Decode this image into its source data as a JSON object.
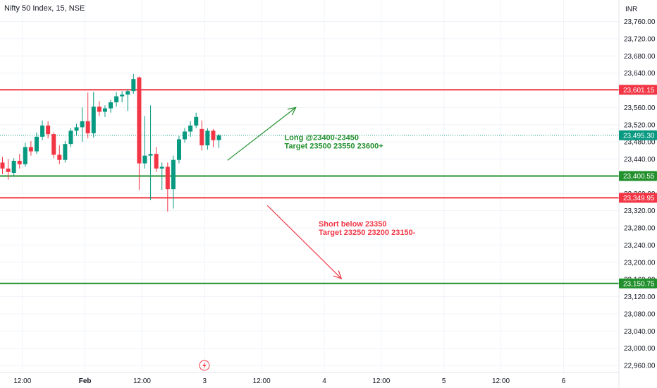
{
  "header": {
    "title": "Nifty 50 Index, 15, NSE",
    "currency": "INR"
  },
  "colors": {
    "up": "#089981",
    "down": "#f23645",
    "grid": "#f0f3fa",
    "axis_text": "#131722",
    "resistance": "#f23645",
    "support": "#22902d",
    "long_annotation": "#22902d",
    "short_annotation": "#f23645",
    "price_line": "#089981"
  },
  "chart_data": {
    "type": "candlestick",
    "y_range": [
      22940,
      23780
    ],
    "y_ticks": [
      {
        "value": 23760,
        "label": "23,760.00"
      },
      {
        "value": 23720,
        "label": "23,720.00"
      },
      {
        "value": 23680,
        "label": "23,680.00"
      },
      {
        "value": 23640,
        "label": "23,640.00"
      },
      {
        "value": 23560,
        "label": "23,560.00"
      },
      {
        "value": 23520,
        "label": "23,520.00"
      },
      {
        "value": 23480,
        "label": "23,480.00"
      },
      {
        "value": 23440,
        "label": "23,440.00"
      },
      {
        "value": 23360,
        "label": "23,360.00"
      },
      {
        "value": 23320,
        "label": "23,320.00"
      },
      {
        "value": 23280,
        "label": "23,280.00"
      },
      {
        "value": 23240,
        "label": "23,240.00"
      },
      {
        "value": 23200,
        "label": "23,200.00"
      },
      {
        "value": 23160,
        "label": "23,160.00"
      },
      {
        "value": 23120,
        "label": "23,120.00"
      },
      {
        "value": 23080,
        "label": "23,080.00"
      },
      {
        "value": 23040,
        "label": "23,040.00"
      },
      {
        "value": 23000,
        "label": "23,000.00"
      },
      {
        "value": 22960,
        "label": "22,960.00"
      }
    ],
    "x_range": [
      0,
      110
    ],
    "x_ticks": [
      {
        "x": 3.5,
        "label": "12:00"
      },
      {
        "x": 14.5,
        "label": "Feb"
      },
      {
        "x": 24.5,
        "label": "12:00"
      },
      {
        "x": 35.5,
        "label": "3"
      },
      {
        "x": 45.5,
        "label": "12:00"
      },
      {
        "x": 56.5,
        "label": "4"
      },
      {
        "x": 66.5,
        "label": "12:00"
      },
      {
        "x": 77.5,
        "label": "5"
      },
      {
        "x": 87.5,
        "label": "12:00"
      },
      {
        "x": 98.5,
        "label": "6"
      }
    ],
    "candles": [
      {
        "x": 0,
        "o": 23432,
        "h": 23445,
        "l": 23405,
        "c": 23418
      },
      {
        "x": 1,
        "o": 23418,
        "h": 23440,
        "l": 23392,
        "c": 23410
      },
      {
        "x": 2,
        "o": 23408,
        "h": 23442,
        "l": 23402,
        "c": 23436
      },
      {
        "x": 3,
        "o": 23436,
        "h": 23452,
        "l": 23418,
        "c": 23428
      },
      {
        "x": 4,
        "o": 23428,
        "h": 23478,
        "l": 23422,
        "c": 23468
      },
      {
        "x": 5,
        "o": 23468,
        "h": 23482,
        "l": 23448,
        "c": 23458
      },
      {
        "x": 6,
        "o": 23458,
        "h": 23502,
        "l": 23452,
        "c": 23492
      },
      {
        "x": 7,
        "o": 23492,
        "h": 23530,
        "l": 23484,
        "c": 23518
      },
      {
        "x": 8,
        "o": 23518,
        "h": 23528,
        "l": 23488,
        "c": 23498
      },
      {
        "x": 9,
        "o": 23498,
        "h": 23502,
        "l": 23442,
        "c": 23450
      },
      {
        "x": 10,
        "o": 23450,
        "h": 23472,
        "l": 23428,
        "c": 23438
      },
      {
        "x": 11,
        "o": 23438,
        "h": 23482,
        "l": 23432,
        "c": 23475
      },
      {
        "x": 12,
        "o": 23475,
        "h": 23512,
        "l": 23468,
        "c": 23506
      },
      {
        "x": 13,
        "o": 23506,
        "h": 23522,
        "l": 23494,
        "c": 23514
      },
      {
        "x": 14,
        "o": 23514,
        "h": 23560,
        "l": 23480,
        "c": 23528
      },
      {
        "x": 15,
        "o": 23528,
        "h": 23595,
        "l": 23488,
        "c": 23500
      },
      {
        "x": 16,
        "o": 23500,
        "h": 23596,
        "l": 23490,
        "c": 23562
      },
      {
        "x": 17,
        "o": 23562,
        "h": 23575,
        "l": 23540,
        "c": 23550
      },
      {
        "x": 18,
        "o": 23550,
        "h": 23565,
        "l": 23538,
        "c": 23558
      },
      {
        "x": 19,
        "o": 23558,
        "h": 23578,
        "l": 23548,
        "c": 23572
      },
      {
        "x": 20,
        "o": 23572,
        "h": 23596,
        "l": 23562,
        "c": 23586
      },
      {
        "x": 21,
        "o": 23586,
        "h": 23598,
        "l": 23572,
        "c": 23590
      },
      {
        "x": 22,
        "o": 23590,
        "h": 23603,
        "l": 23552,
        "c": 23598
      },
      {
        "x": 23,
        "o": 23598,
        "h": 23638,
        "l": 23592,
        "c": 23626
      },
      {
        "x": 24,
        "o": 23630,
        "h": 23632,
        "l": 23368,
        "c": 23430
      },
      {
        "x": 25,
        "o": 23430,
        "h": 23540,
        "l": 23418,
        "c": 23448
      },
      {
        "x": 26,
        "o": 23448,
        "h": 23565,
        "l": 23345,
        "c": 23452
      },
      {
        "x": 27,
        "o": 23452,
        "h": 23468,
        "l": 23410,
        "c": 23418
      },
      {
        "x": 28,
        "o": 23418,
        "h": 23432,
        "l": 23368,
        "c": 23422
      },
      {
        "x": 29,
        "o": 23422,
        "h": 23432,
        "l": 23318,
        "c": 23370
      },
      {
        "x": 30,
        "o": 23370,
        "h": 23448,
        "l": 23325,
        "c": 23438
      },
      {
        "x": 31,
        "o": 23438,
        "h": 23494,
        "l": 23430,
        "c": 23486
      },
      {
        "x": 32,
        "o": 23486,
        "h": 23512,
        "l": 23478,
        "c": 23504
      },
      {
        "x": 33,
        "o": 23504,
        "h": 23528,
        "l": 23492,
        "c": 23518
      },
      {
        "x": 34,
        "o": 23518,
        "h": 23548,
        "l": 23512,
        "c": 23538
      },
      {
        "x": 35,
        "o": 23510,
        "h": 23530,
        "l": 23460,
        "c": 23472
      },
      {
        "x": 36,
        "o": 23472,
        "h": 23512,
        "l": 23462,
        "c": 23506
      },
      {
        "x": 37,
        "o": 23506,
        "h": 23510,
        "l": 23468,
        "c": 23484
      },
      {
        "x": 38,
        "o": 23484,
        "h": 23498,
        "l": 23466,
        "c": 23495.3
      }
    ],
    "levels": [
      {
        "value": 23601.15,
        "label": "23,601.15",
        "color": "#f23645"
      },
      {
        "value": 23495.3,
        "label": "23,495.30",
        "color": "#089981",
        "style": "dotted"
      },
      {
        "value": 23400.55,
        "label": "23,400.55",
        "color": "#22902d"
      },
      {
        "value": 23349.95,
        "label": "23,349.95",
        "color": "#f23645"
      },
      {
        "value": 23150.75,
        "label": "23,150.75",
        "color": "#22902d"
      }
    ],
    "arrows": [
      {
        "from": [
          39.5,
          23437
        ],
        "to": [
          51.5,
          23560
        ],
        "color": "#22902d"
      },
      {
        "from": [
          46.5,
          23332
        ],
        "to": [
          59.5,
          23162
        ],
        "color": "#f23645"
      }
    ],
    "annotations": [
      {
        "x": 49.5,
        "y": 23484,
        "color": "#22902d",
        "lines": [
          "Long @23400-23450",
          "Target 23500 23550 23600+"
        ]
      },
      {
        "x": 55.5,
        "y": 23283,
        "color": "#f23645",
        "lines": [
          "Short below 23350",
          "Target 23250 23200 23150-"
        ]
      }
    ]
  }
}
